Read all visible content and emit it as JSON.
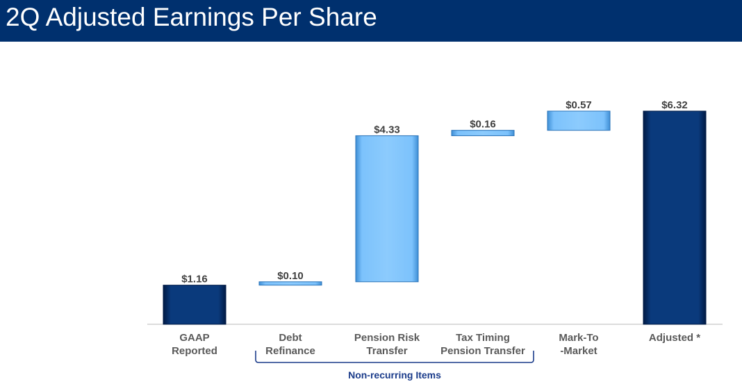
{
  "header": {
    "title": "2Q Adjusted Earnings Per Share"
  },
  "chart_data": {
    "type": "bar",
    "subtype": "waterfall",
    "categories": [
      [
        "GAAP",
        "Reported"
      ],
      [
        "Debt",
        "Refinance"
      ],
      [
        "Pension Risk",
        "Transfer"
      ],
      [
        "Tax Timing",
        "Pension Transfer"
      ],
      [
        "Mark-To",
        "-Market"
      ],
      [
        "Adjusted *"
      ]
    ],
    "values": [
      1.16,
      0.1,
      4.33,
      0.16,
      0.57,
      6.32
    ],
    "value_labels": [
      "$1.16",
      "$0.10",
      "$4.33",
      "$0.16",
      "$0.57",
      "$6.32"
    ],
    "bar_kinds": [
      "total",
      "increment",
      "increment",
      "increment",
      "increment",
      "total"
    ],
    "ylim": [
      0,
      6.32
    ],
    "grid": false,
    "legend": "none",
    "colors": {
      "total": "#002f6c",
      "increment": "#7cc2fc"
    },
    "bracket": {
      "label": "Non-recurring Items",
      "spans": [
        1,
        3
      ]
    }
  }
}
